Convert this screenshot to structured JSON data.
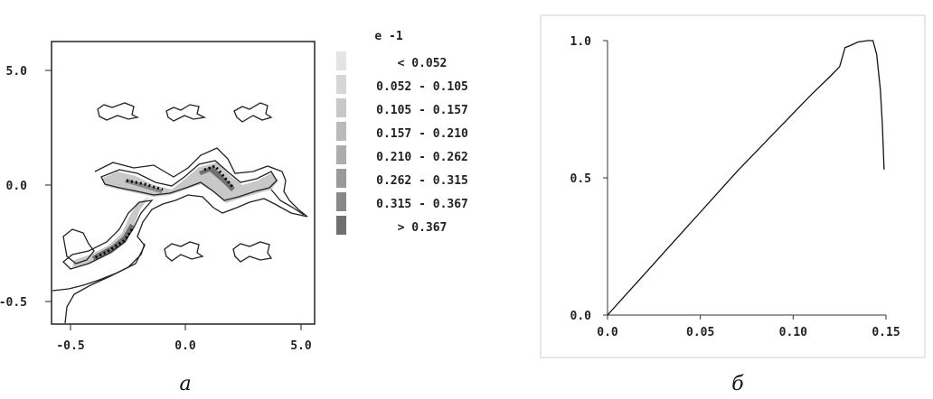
{
  "chart_data": [
    {
      "panel": "a",
      "type": "heatmap",
      "caption": "а",
      "x_ticks": [
        "-0.5",
        "0.0",
        "5.0"
      ],
      "y_ticks": [
        "5.0",
        "0.0",
        "-0.5"
      ],
      "legend": {
        "title": "e -1",
        "position": "right",
        "levels": [
          "< 0.052",
          "0.052 - 0.105",
          "0.105 - 0.157",
          "0.157 - 0.210",
          "0.210 - 0.262",
          "0.262 - 0.315",
          "0.315 - 0.367",
          "> 0.367"
        ],
        "colors": [
          "#e4e4e4",
          "#d6d6d6",
          "#c8c8c8",
          "#bababa",
          "#acacac",
          "#9a9a9a",
          "#888888",
          "#707070"
        ]
      },
      "grid": false
    },
    {
      "panel": "b",
      "type": "line",
      "caption": "б",
      "x_ticks": [
        "0.0",
        "0.05",
        "0.10",
        "0.15"
      ],
      "y_ticks": [
        "1.0",
        "0.5",
        "0.0"
      ],
      "xlim": [
        0,
        0.15
      ],
      "ylim": [
        0,
        1.0
      ],
      "grid": false,
      "series": [
        {
          "x": [
            0,
            0.01,
            0.02,
            0.03,
            0.04,
            0.05,
            0.06,
            0.07,
            0.08,
            0.09,
            0.1,
            0.11,
            0.12,
            0.125,
            0.128,
            0.13,
            0.135,
            0.14,
            0.143,
            0.145,
            0.147,
            0.148,
            0.149
          ],
          "y": [
            0,
            0.075,
            0.15,
            0.225,
            0.3,
            0.375,
            0.45,
            0.525,
            0.595,
            0.665,
            0.735,
            0.805,
            0.87,
            0.905,
            0.975,
            0.98,
            0.995,
            1.0,
            1.0,
            0.95,
            0.82,
            0.7,
            0.53
          ]
        }
      ]
    }
  ]
}
